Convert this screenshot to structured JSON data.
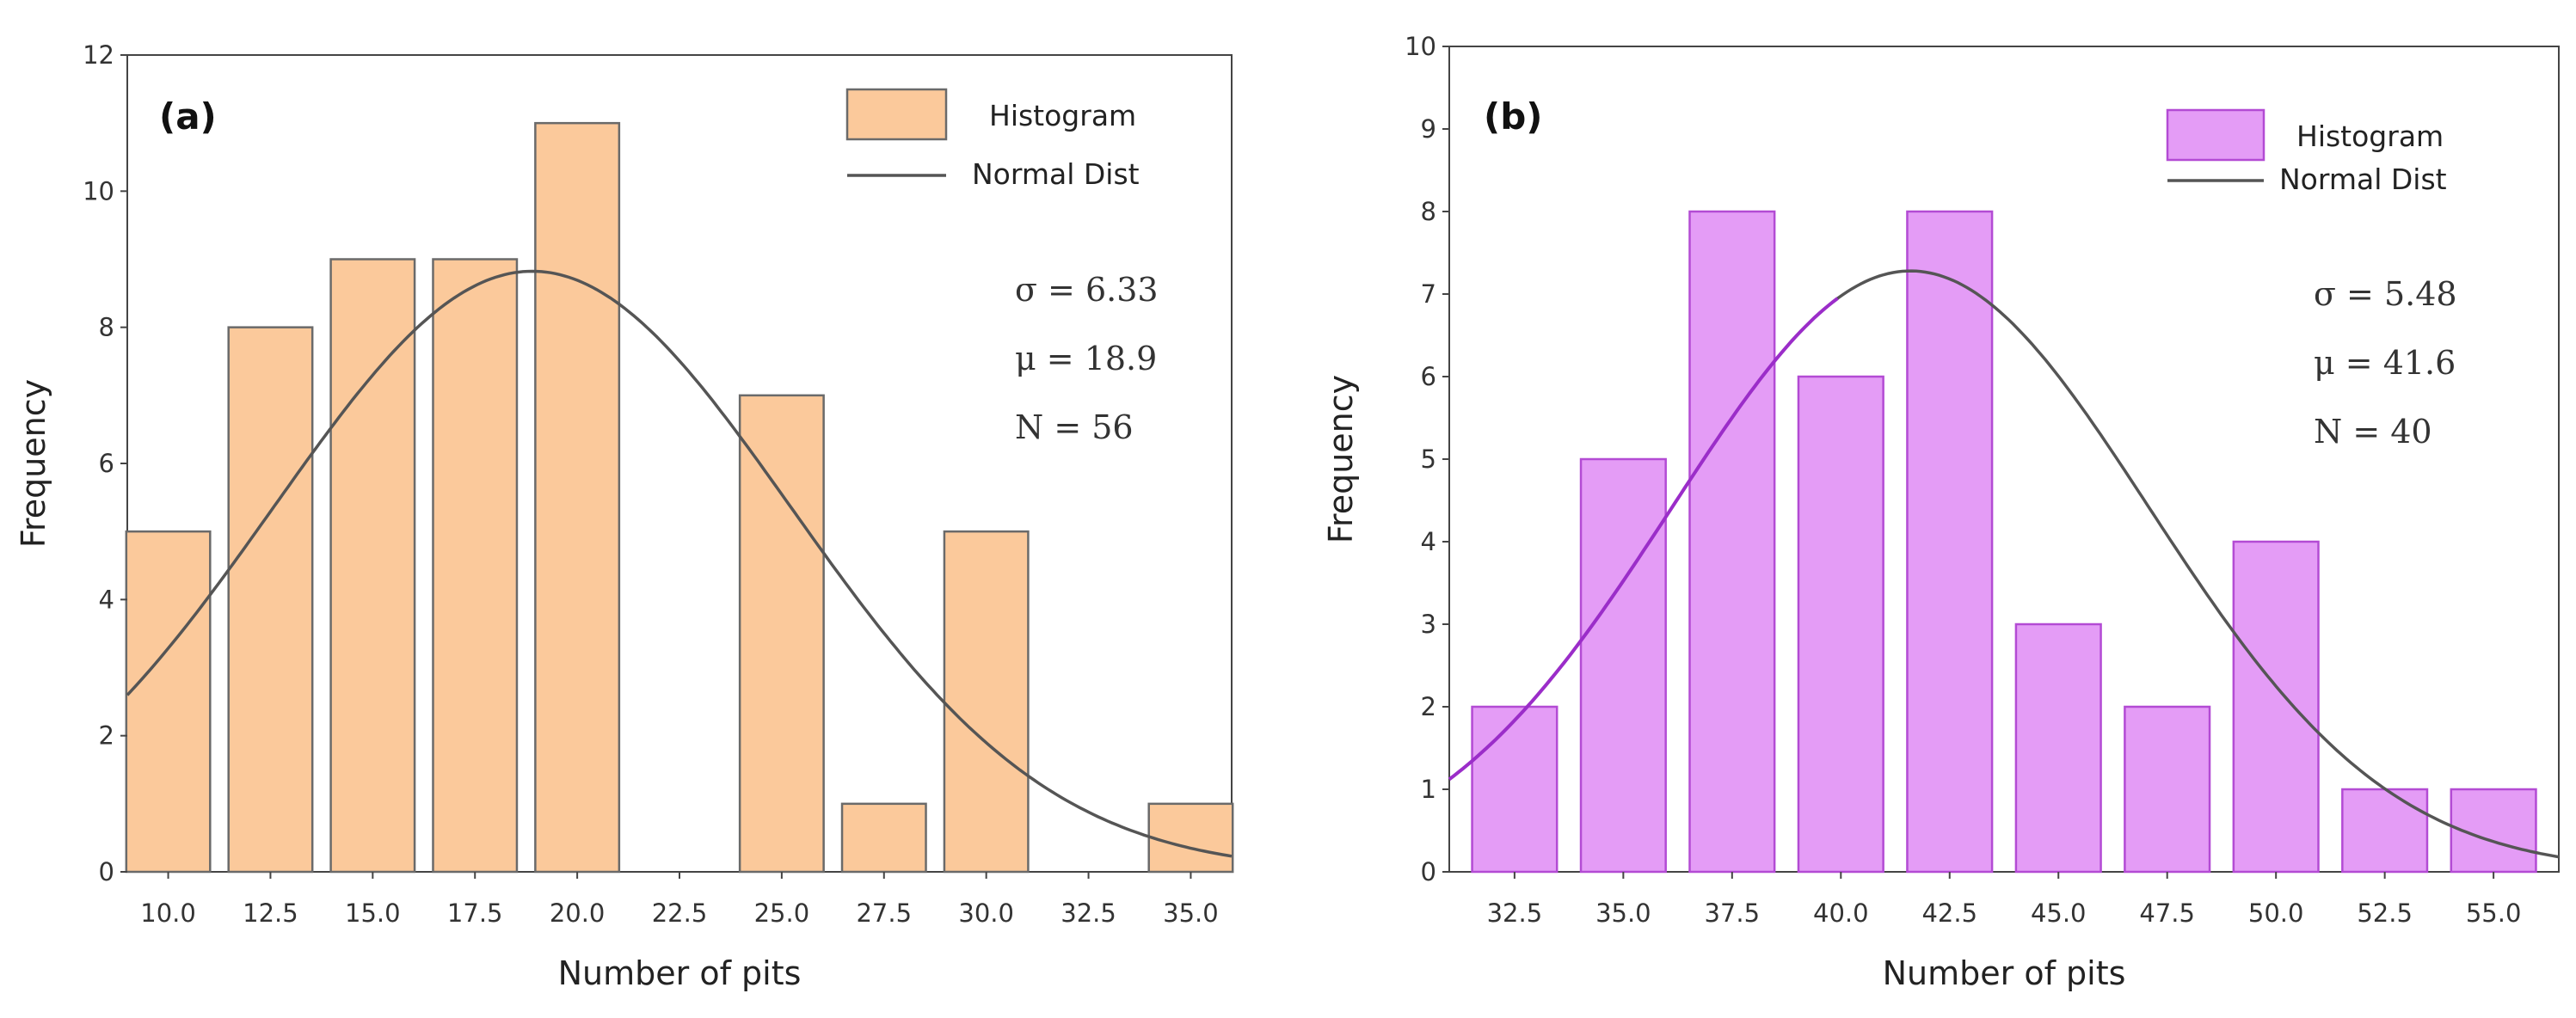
{
  "chart_data": [
    {
      "type": "bar",
      "panel_label": "(a)",
      "xlabel": "Number of pits",
      "ylabel": "Frequency",
      "x_ticks": [
        10.0,
        12.5,
        15.0,
        17.5,
        20.0,
        22.5,
        25.0,
        27.5,
        30.0,
        32.5,
        35.0
      ],
      "x_tick_labels": [
        "10.0",
        "12.5",
        "15.0",
        "17.5",
        "20.0",
        "22.5",
        "25.0",
        "27.5",
        "30.0",
        "32.5",
        "35.0"
      ],
      "bins": [
        10.0,
        12.5,
        15.0,
        17.5,
        20.0,
        22.5,
        25.0,
        27.5,
        30.0,
        32.5,
        35.0
      ],
      "values": [
        5,
        8,
        9,
        9,
        11,
        0,
        7,
        1,
        5,
        0,
        1
      ],
      "xlim": [
        9.0,
        36.0
      ],
      "ylim": [
        0,
        12
      ],
      "y_ticks": [
        0,
        2,
        4,
        6,
        8,
        10,
        12
      ],
      "y_tick_labels": [
        "0",
        "2",
        "4",
        "6",
        "8",
        "10",
        "12"
      ],
      "normal_dist": {
        "mu": 18.9,
        "sigma": 6.33,
        "n": 56,
        "bin_width": 2.5
      },
      "legend": {
        "position": "top-right",
        "entries": [
          "Histogram",
          "Normal Dist"
        ]
      },
      "stats": [
        "σ = 6.33",
        "μ = 18.9",
        "N = 56"
      ],
      "colors": {
        "bar_fill": "#fbc99b",
        "bar_stroke": "#6a6a6a",
        "curve": "#555555"
      }
    },
    {
      "type": "bar",
      "panel_label": "(b)",
      "xlabel": "Number of pits",
      "ylabel": "Frequency",
      "x_ticks": [
        32.5,
        35.0,
        37.5,
        40.0,
        42.5,
        45.0,
        47.5,
        50.0,
        52.5,
        55.0
      ],
      "x_tick_labels": [
        "32.5",
        "35.0",
        "37.5",
        "40.0",
        "42.5",
        "45.0",
        "47.5",
        "50.0",
        "52.5",
        "55.0"
      ],
      "bins": [
        32.5,
        35.0,
        37.5,
        40.0,
        42.5,
        45.0,
        47.5,
        50.0,
        52.5,
        55.0
      ],
      "values": [
        2,
        5,
        8,
        6,
        8,
        3,
        2,
        4,
        1,
        1
      ],
      "xlim": [
        31.0,
        56.5
      ],
      "ylim": [
        0,
        10
      ],
      "y_ticks": [
        0,
        1,
        2,
        3,
        4,
        5,
        6,
        7,
        8,
        9,
        10
      ],
      "y_tick_labels": [
        "0",
        "1",
        "2",
        "3",
        "4",
        "5",
        "6",
        "7",
        "8",
        "9",
        "10"
      ],
      "normal_dist": {
        "mu": 41.6,
        "sigma": 5.48,
        "n": 40,
        "bin_width": 2.5
      },
      "legend": {
        "position": "top-right",
        "entries": [
          "Histogram",
          "Normal Dist"
        ]
      },
      "stats": [
        "σ = 5.48",
        "μ = 41.6",
        "N = 40"
      ],
      "colors": {
        "bar_fill": "#e49cf6",
        "bar_stroke": "#b34bd4",
        "curve": "#555555",
        "curve_accent": "#9b2dc9"
      }
    }
  ]
}
